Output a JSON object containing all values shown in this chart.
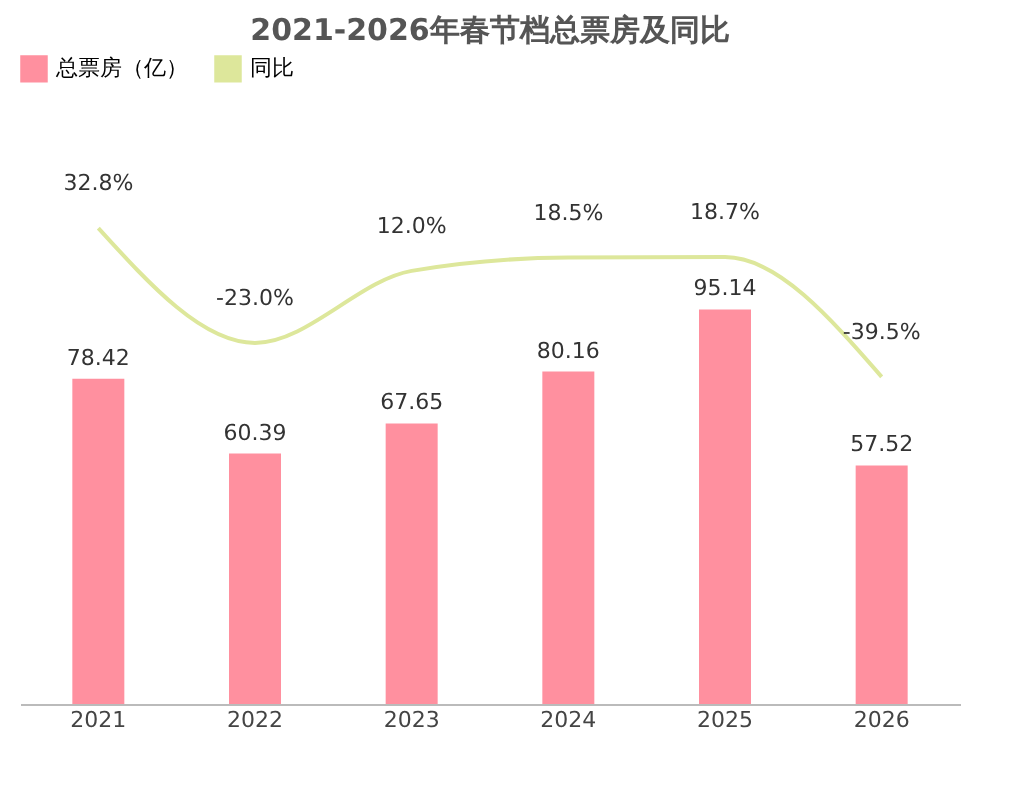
{
  "chart_data": {
    "type": "bar",
    "title": "2021-2026年春节档总票房及同比",
    "categories": [
      "2021",
      "2022",
      "2023",
      "2024",
      "2025",
      "2026"
    ],
    "series": [
      {
        "name": "总票房（亿）",
        "color": "#ff909f",
        "values": [
          78.42,
          60.39,
          67.65,
          80.16,
          95.14,
          57.52
        ],
        "value_labels": [
          "78.42",
          "60.39",
          "67.65",
          "80.16",
          "95.14",
          "57.52"
        ]
      },
      {
        "name": "同比",
        "type": "line",
        "axis": "y2",
        "color": "#dde79b",
        "values": [
          32.8,
          -23.0,
          12.0,
          18.5,
          18.7,
          -39.5
        ],
        "value_labels": [
          "32.8%",
          "-23.0%",
          "12.0%",
          "18.5%",
          "18.7%",
          "-39.5%"
        ]
      }
    ],
    "tick_labels": "x",
    "legend": "top"
  }
}
